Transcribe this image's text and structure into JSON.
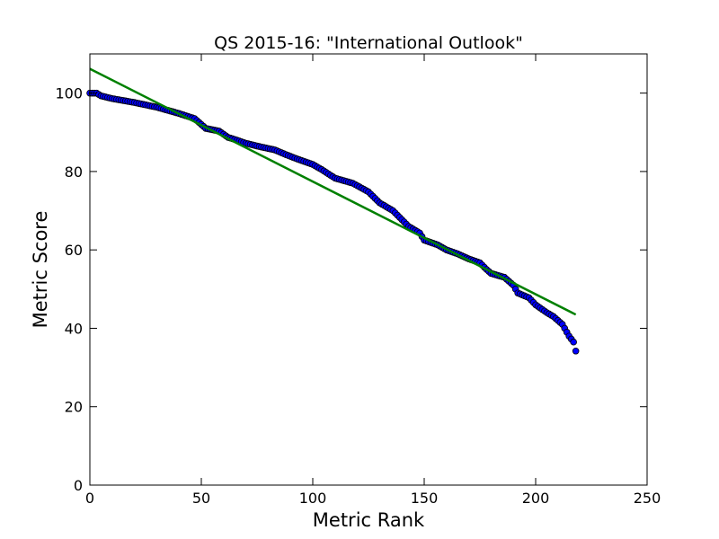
{
  "chart_data": {
    "type": "scatter",
    "title": "QS 2015-16: \"International Outlook\"",
    "xlabel": "Metric Rank",
    "ylabel": "Metric Score",
    "xlim": [
      0,
      250
    ],
    "ylim": [
      0,
      110
    ],
    "xticks": [
      0,
      50,
      100,
      150,
      200,
      250
    ],
    "yticks": [
      0,
      20,
      40,
      60,
      80,
      100
    ],
    "grid": false,
    "legend": "none",
    "colors": {
      "points": "#0000ff",
      "fit_line": "#008000"
    },
    "fit_line": {
      "x": [
        0,
        218
      ],
      "y": [
        106.2,
        43.5
      ]
    },
    "curve_anchors": {
      "x": [
        0,
        3,
        5,
        10,
        20,
        30,
        40,
        47,
        52,
        58,
        62,
        66,
        70,
        75,
        83,
        88,
        93,
        100,
        104,
        110,
        118,
        125,
        130,
        136,
        143,
        148,
        150,
        156,
        160,
        165,
        170,
        175,
        178,
        180,
        186,
        188,
        190,
        192,
        197,
        200,
        205,
        208,
        210,
        212,
        215,
        217,
        218
      ],
      "y": [
        100,
        100,
        99.3,
        98.6,
        97.6,
        96.4,
        94.8,
        93.5,
        91,
        90.3,
        88.7,
        88,
        87.2,
        86.5,
        85.5,
        84.3,
        83.2,
        81.8,
        80.5,
        78.3,
        77,
        74.8,
        72,
        70,
        66,
        64.3,
        62.5,
        61.3,
        60,
        59,
        57.7,
        56.7,
        55,
        54,
        53,
        52,
        51,
        49,
        47.8,
        46,
        44,
        43,
        42,
        41,
        38,
        36.5,
        34.2
      ]
    }
  }
}
